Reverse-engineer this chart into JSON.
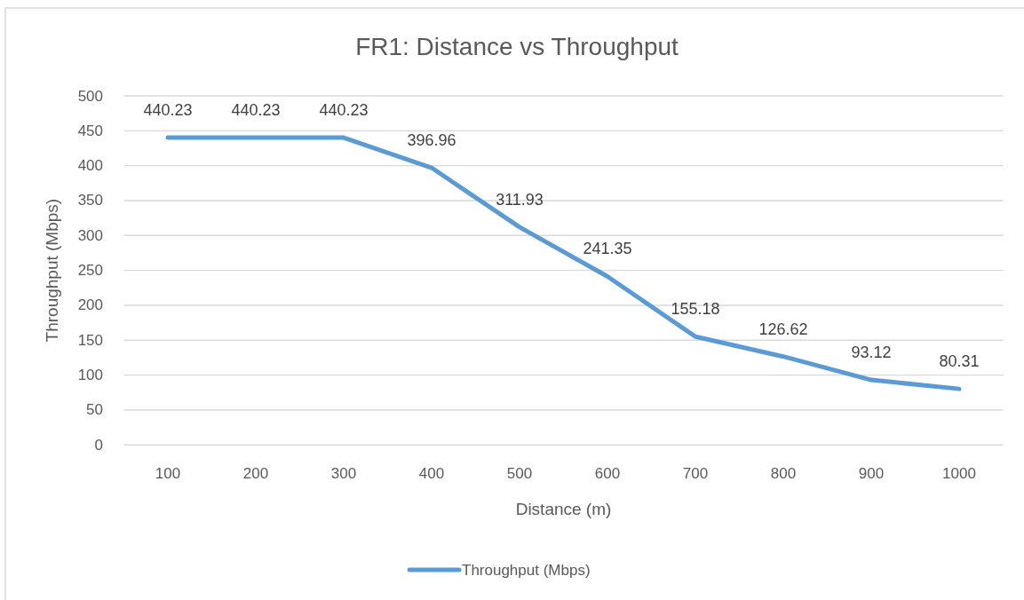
{
  "chart_data": {
    "type": "line",
    "title": "FR1: Distance vs Throughput",
    "xlabel": "Distance (m)",
    "ylabel": "Throughput (Mbps)",
    "categories": [
      "100",
      "200",
      "300",
      "400",
      "500",
      "600",
      "700",
      "800",
      "900",
      "1000"
    ],
    "series": [
      {
        "name": "Throughput (Mbps)",
        "color": "#5b9bd5",
        "values": [
          440.23,
          440.23,
          440.23,
          396.96,
          311.93,
          241.35,
          155.18,
          126.62,
          93.12,
          80.31
        ]
      }
    ],
    "ylim": [
      0,
      500
    ],
    "yticks": [
      0,
      50,
      100,
      150,
      200,
      250,
      300,
      350,
      400,
      450,
      500
    ],
    "grid": "y",
    "legend": "bottom",
    "data_labels": true,
    "marker": "none",
    "line_style": "solid"
  }
}
